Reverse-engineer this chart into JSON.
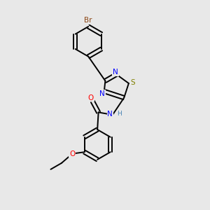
{
  "background_color": "#e8e8e8",
  "bond_color": "#000000",
  "atom_colors": {
    "Br": "#8B4513",
    "N": "#0000FF",
    "S": "#808000",
    "O": "#FF0000",
    "C": "#000000",
    "H": "#4682B4"
  },
  "font_size": 7.5,
  "lw": 1.4
}
